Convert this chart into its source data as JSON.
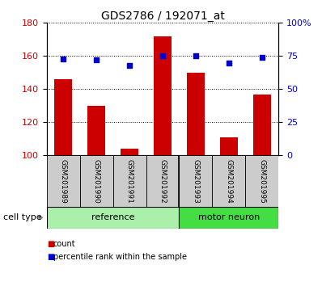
{
  "title": "GDS2786 / 192071_at",
  "samples": [
    "GSM201989",
    "GSM201990",
    "GSM201991",
    "GSM201992",
    "GSM201993",
    "GSM201994",
    "GSM201995"
  ],
  "counts": [
    146,
    130,
    104,
    172,
    150,
    111,
    137
  ],
  "percentiles": [
    73,
    72,
    68,
    75,
    75,
    70,
    74
  ],
  "group_split": 4,
  "ylim_left": [
    100,
    180
  ],
  "ylim_right": [
    0,
    100
  ],
  "yticks_left": [
    100,
    120,
    140,
    160,
    180
  ],
  "yticks_right": [
    0,
    25,
    50,
    75,
    100
  ],
  "bar_color": "#cc0000",
  "dot_color": "#0000cc",
  "bar_width": 0.55,
  "ref_color": "#aaf0aa",
  "mot_color": "#44dd44",
  "tick_color_left": "#cc0000",
  "tick_color_right": "#0000cc",
  "legend_count_label": "count",
  "legend_pct_label": "percentile rank within the sample",
  "cell_type_label": "cell type",
  "group_ref_label": "reference",
  "group_mot_label": "motor neuron"
}
